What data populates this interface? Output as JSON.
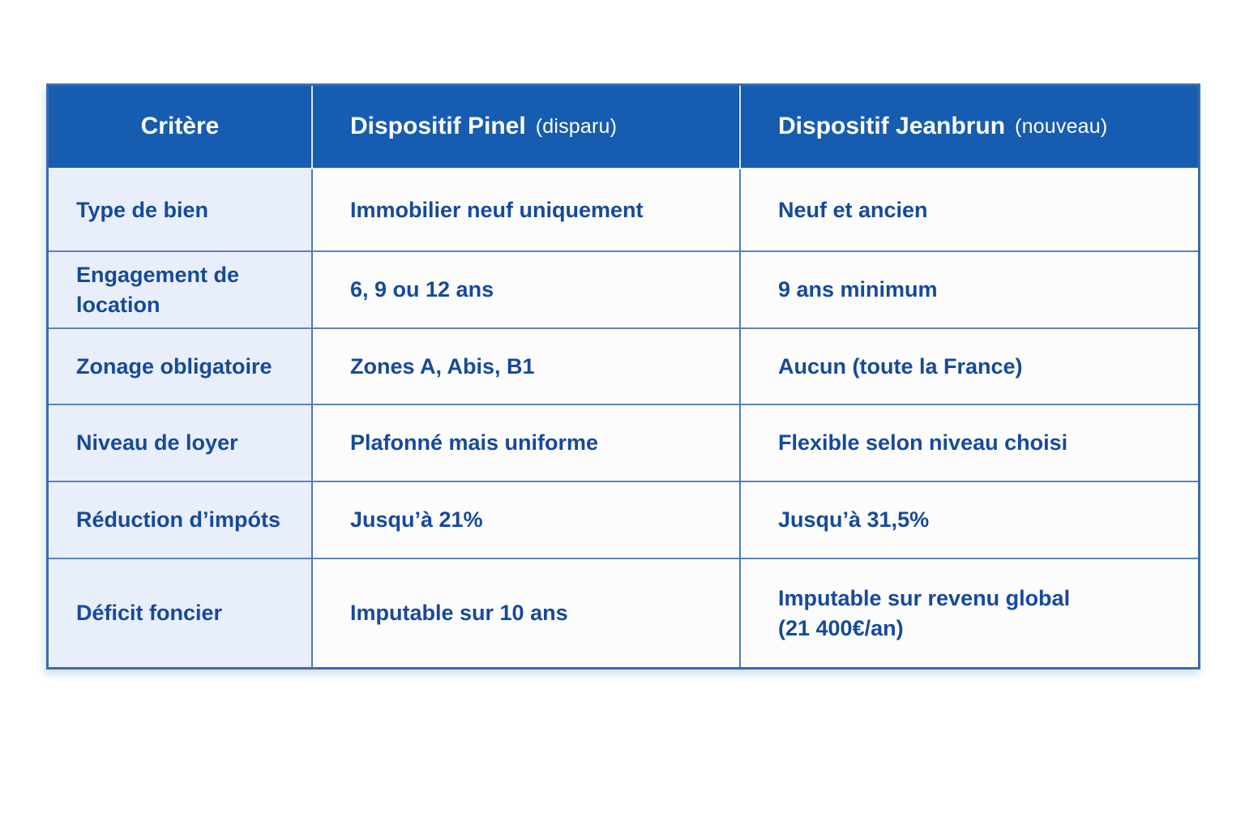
{
  "colors": {
    "header_bg": "#165cb0",
    "header_text": "#ffffff",
    "body_text": "#164a9a",
    "label_column_bg": "#e9effa",
    "cell_bg": "#fcfcfd",
    "row_divider": "#5b84ba",
    "column_divider": "#4c7ab8",
    "outer_border": "#3b6cb0",
    "page_bg": "#ffffff"
  },
  "table": {
    "header": {
      "criteria": "Critère",
      "pinel_title": "Dispositif Pinel",
      "pinel_tag": "(disparu)",
      "jeanbrun_title": "Dispositif Jeanbrun",
      "jeanbrun_tag": "(nouveau)"
    },
    "rows": [
      {
        "label": "Type de bien",
        "pinel": "Immobilier neuf uniquement",
        "jeanbrun": "Neuf et ancien"
      },
      {
        "label": "Engagement de location",
        "pinel": "6, 9 ou 12 ans",
        "jeanbrun": "9 ans minimum"
      },
      {
        "label": "Zonage obligatoire",
        "pinel": "Zones A, Abis, B1",
        "jeanbrun": "Aucun (toute la France)"
      },
      {
        "label": "Niveau de loyer",
        "pinel": "Plafonné mais uniforme",
        "jeanbrun": "Flexible selon niveau choisi"
      },
      {
        "label": "Réduction d’impóts",
        "pinel": "Jusqu’à 21%",
        "jeanbrun": "Jusqu’à 31,5%"
      },
      {
        "label": "Déficit foncier",
        "pinel": "Imputable sur 10 ans",
        "jeanbrun": "Imputable sur revenu global\n(21 400€/an)"
      }
    ]
  },
  "chart_data": {
    "type": "table",
    "title": "",
    "columns": [
      "Critère",
      "Dispositif Pinel (disparu)",
      "Dispositif Jeanbrun (nouveau)"
    ],
    "rows": [
      [
        "Type de bien",
        "Immobilier neuf uniquement",
        "Neuf et ancien"
      ],
      [
        "Engagement de location",
        "6, 9 ou 12 ans",
        "9 ans minimum"
      ],
      [
        "Zonage obligatoire",
        "Zones A, Abis, B1",
        "Aucun (toute la France)"
      ],
      [
        "Niveau de loyer",
        "Plafonné mais uniforme",
        "Flexible selon niveau choisi"
      ],
      [
        "Réduction d’impóts",
        "Jusqu’à 21%",
        "Jusqu’à 31,5%"
      ],
      [
        "Déficit foncier",
        "Imputable sur 10 ans",
        "Imputable sur revenu global (21 400€/an)"
      ]
    ],
    "legend_position": "none",
    "grid": true
  }
}
